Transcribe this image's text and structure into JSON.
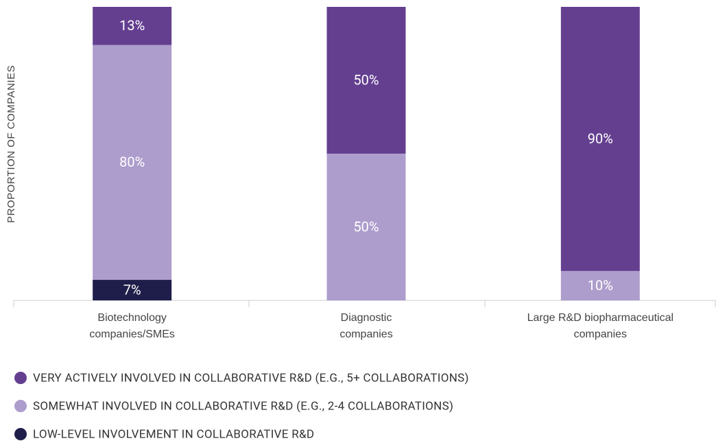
{
  "chart_data": {
    "type": "stacked_bar",
    "y_label": "PROPORTION OF COMPANIES",
    "categories": [
      "Biotechnology companies/SMEs",
      "Diagnostic companies",
      "Large R&D biopharmaceutical companies"
    ],
    "series": [
      {
        "name": "LOW-LEVEL INVOLVEMENT IN COLLABORATIVE R&D",
        "color": "#1f1e4a",
        "values": [
          7,
          0,
          0
        ],
        "value_labels": [
          "7%",
          null,
          null
        ]
      },
      {
        "name": "SOMEWHAT INVOLVED IN COLLABORATIVE R&D (E.G., 2-4 COLLABORATIONS)",
        "color": "#ad9dcc",
        "values": [
          80,
          50,
          10
        ],
        "value_labels": [
          "80%",
          "50%",
          "10%"
        ]
      },
      {
        "name": "VERY ACTIVELY INVOLVED IN COLLABORATIVE R&D (E.G., 5+ COLLABORATIONS)",
        "color": "#643f90",
        "values": [
          13,
          50,
          90
        ],
        "value_labels": [
          "13%",
          "50%",
          "90%"
        ]
      }
    ],
    "ylim": [
      0,
      100
    ]
  }
}
